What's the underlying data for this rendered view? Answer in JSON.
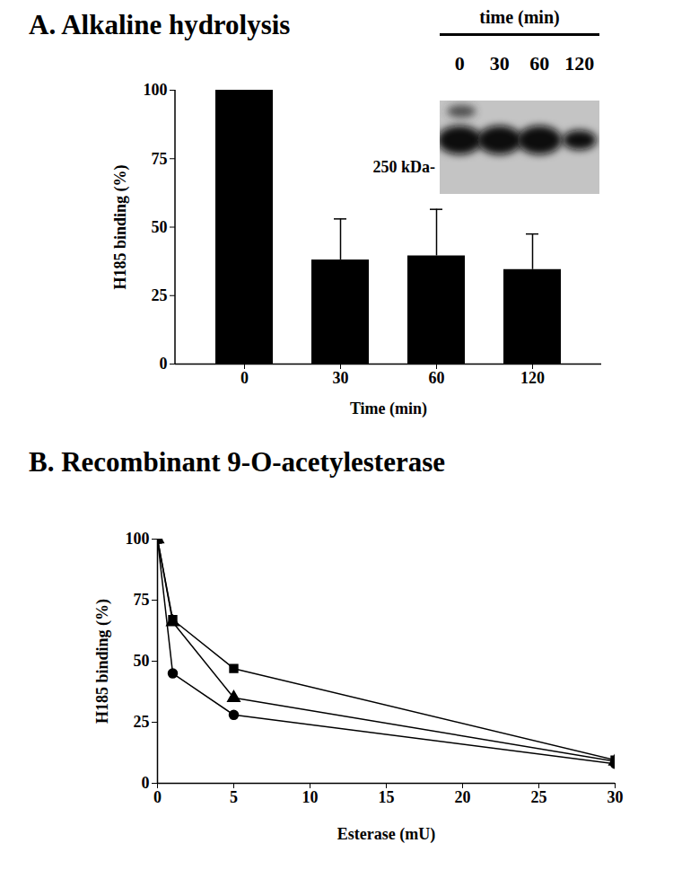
{
  "chart_data": [
    {
      "type": "bar",
      "title": "A. Alkaline hydrolysis",
      "x_label": "Time (min)",
      "y_label": "H185 binding (%)",
      "categories": [
        "0",
        "30",
        "60",
        "120"
      ],
      "values": [
        100,
        38,
        39.5,
        34.5
      ],
      "errors": [
        null,
        15,
        17,
        13
      ],
      "color": "#000000",
      "ylim": [
        0,
        100
      ],
      "yticks": [
        0,
        25,
        50,
        75,
        100
      ],
      "grid": false,
      "inset": {
        "title": "time (min)",
        "lanes": [
          "0",
          "30",
          "60",
          "120"
        ],
        "size_label": "250 kDa-"
      }
    },
    {
      "type": "line",
      "title": "B. Recombinant 9-O-acetylesterase",
      "x_label": "Esterase (mU)",
      "y_label": "H185 binding (%)",
      "x": [
        0,
        1,
        5,
        30
      ],
      "series": [
        {
          "marker": "square",
          "color": "#000000",
          "values": [
            100,
            67,
            47,
            9.5
          ]
        },
        {
          "marker": "triangle",
          "color": "#000000",
          "values": [
            100,
            66,
            35,
            9
          ]
        },
        {
          "marker": "circle",
          "color": "#000000",
          "values": [
            100,
            45,
            28,
            8
          ]
        }
      ],
      "xlim": [
        0,
        30
      ],
      "xticks": [
        0,
        5,
        10,
        15,
        20,
        25,
        30
      ],
      "ylim": [
        0,
        100
      ],
      "yticks": [
        0,
        25,
        50,
        75,
        100
      ],
      "grid": false
    }
  ]
}
